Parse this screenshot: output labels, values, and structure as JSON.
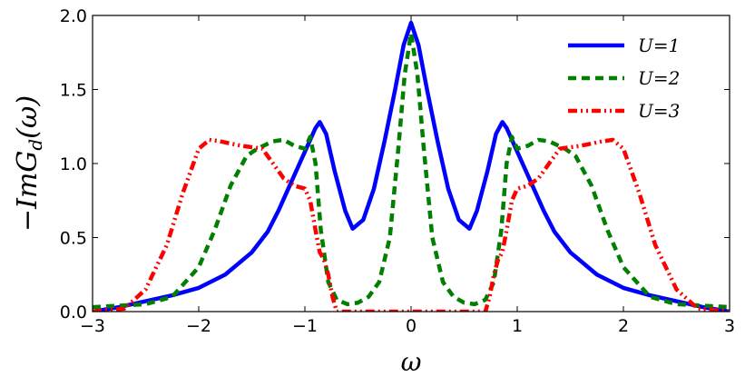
{
  "chart_data": {
    "type": "line",
    "xlabel": "ω",
    "ylabel": "−ImG_d(ω)",
    "ylabel_main": "−ImG",
    "ylabel_sub": "d",
    "ylabel_tail": "(ω)",
    "xlim": [
      -3,
      3
    ],
    "ylim": [
      0,
      2
    ],
    "x_ticks": [
      -3,
      -2,
      -1,
      0,
      1,
      2,
      3
    ],
    "x_tick_labels": [
      "−3",
      "−2",
      "−1",
      "0",
      "1",
      "2",
      "3"
    ],
    "y_ticks": [
      0,
      0.5,
      1,
      1.5,
      2
    ],
    "y_tick_labels": [
      "0.0",
      "0.5",
      "1.0",
      "1.5",
      "2.0"
    ],
    "grid": false,
    "legend_position": "top-right",
    "series": [
      {
        "name": "U=1",
        "color": "#0000ff",
        "style": "solid",
        "x": [
          -3.0,
          -2.75,
          -2.5,
          -2.25,
          -2.0,
          -1.75,
          -1.5,
          -1.35,
          -1.25,
          -1.15,
          -1.05,
          -0.95,
          -0.9,
          -0.86,
          -0.8,
          -0.72,
          -0.62,
          -0.55,
          -0.45,
          -0.35,
          -0.25,
          -0.15,
          -0.07,
          0.0,
          0.07,
          0.15,
          0.25,
          0.35,
          0.45,
          0.55,
          0.62,
          0.72,
          0.8,
          0.86,
          0.9,
          0.95,
          1.05,
          1.15,
          1.25,
          1.35,
          1.5,
          1.75,
          2.0,
          2.25,
          2.5,
          2.75,
          3.0
        ],
        "y": [
          0.0,
          0.03,
          0.07,
          0.11,
          0.16,
          0.25,
          0.4,
          0.54,
          0.68,
          0.84,
          1.0,
          1.16,
          1.24,
          1.28,
          1.2,
          0.95,
          0.68,
          0.56,
          0.62,
          0.83,
          1.15,
          1.5,
          1.8,
          1.95,
          1.8,
          1.5,
          1.15,
          0.83,
          0.62,
          0.56,
          0.68,
          0.95,
          1.2,
          1.28,
          1.24,
          1.16,
          1.0,
          0.84,
          0.68,
          0.54,
          0.4,
          0.25,
          0.16,
          0.11,
          0.07,
          0.03,
          0.0
        ]
      },
      {
        "name": "U=2",
        "color": "#007f00",
        "style": "dashed",
        "x": [
          -3.0,
          -2.5,
          -2.25,
          -2.0,
          -1.85,
          -1.7,
          -1.55,
          -1.45,
          -1.3,
          -1.2,
          -1.1,
          -1.0,
          -0.95,
          -0.9,
          -0.85,
          -0.78,
          -0.7,
          -0.6,
          -0.5,
          -0.4,
          -0.3,
          -0.2,
          -0.12,
          -0.06,
          0.0,
          0.06,
          0.12,
          0.2,
          0.3,
          0.4,
          0.5,
          0.6,
          0.7,
          0.78,
          0.85,
          0.9,
          0.95,
          1.0,
          1.1,
          1.2,
          1.3,
          1.45,
          1.55,
          1.7,
          1.85,
          2.0,
          2.25,
          2.5,
          3.0
        ],
        "y": [
          0.03,
          0.05,
          0.1,
          0.3,
          0.55,
          0.85,
          1.05,
          1.1,
          1.15,
          1.16,
          1.12,
          1.1,
          1.18,
          1.0,
          0.55,
          0.2,
          0.08,
          0.05,
          0.06,
          0.1,
          0.2,
          0.5,
          1.1,
          1.6,
          1.88,
          1.6,
          1.1,
          0.5,
          0.2,
          0.1,
          0.06,
          0.05,
          0.08,
          0.2,
          0.55,
          1.0,
          1.18,
          1.1,
          1.12,
          1.16,
          1.15,
          1.1,
          1.05,
          0.85,
          0.55,
          0.3,
          0.1,
          0.05,
          0.03
        ]
      },
      {
        "name": "U=3",
        "color": "#ff0000",
        "style": "dashdot",
        "x": [
          -3.0,
          -2.7,
          -2.5,
          -2.3,
          -2.15,
          -2.0,
          -1.9,
          -1.8,
          -1.6,
          -1.4,
          -1.3,
          -1.2,
          -1.1,
          -1.0,
          -0.95,
          -0.9,
          -0.86,
          -0.82,
          -0.78,
          -0.74,
          -0.7,
          -0.6,
          0.0,
          0.6,
          0.7,
          0.74,
          0.78,
          0.82,
          0.86,
          0.9,
          0.95,
          1.0,
          1.1,
          1.2,
          1.3,
          1.4,
          1.6,
          1.8,
          1.9,
          2.0,
          2.15,
          2.3,
          2.5,
          2.7,
          3.0
        ],
        "y": [
          0.0,
          0.02,
          0.15,
          0.45,
          0.8,
          1.1,
          1.16,
          1.15,
          1.12,
          1.1,
          1.0,
          0.9,
          0.85,
          0.83,
          0.75,
          0.55,
          0.4,
          0.35,
          0.25,
          0.1,
          0.0,
          0.0,
          0.0,
          0.0,
          0.0,
          0.1,
          0.25,
          0.35,
          0.4,
          0.55,
          0.75,
          0.83,
          0.85,
          0.9,
          1.0,
          1.1,
          1.12,
          1.15,
          1.16,
          1.1,
          0.8,
          0.45,
          0.15,
          0.02,
          0.0
        ]
      }
    ]
  }
}
